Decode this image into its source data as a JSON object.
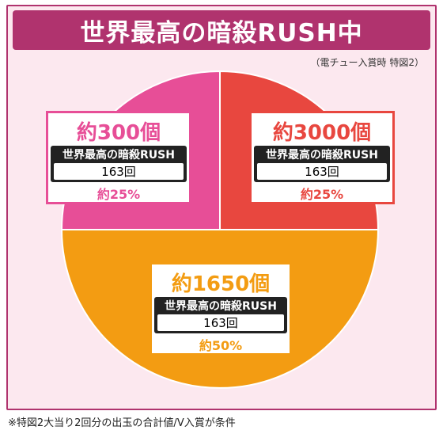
{
  "title": "世界最高の暗殺RUSH中",
  "note": "（電チュー入賞時 特図2）",
  "footnote": "※特図2大当り2回分の出玉の合計値/V入賞が条件",
  "colors": {
    "pink": "#e74e97",
    "red": "#e8473f",
    "orange": "#f39c12",
    "frame": "#b0336e"
  },
  "chart_data": {
    "type": "pie",
    "title": "世界最高の暗殺RUSH中",
    "slices": [
      {
        "key": "red",
        "amount": "約3000個",
        "mode": "世界最高の暗殺RUSH",
        "count": "163回",
        "percent_label": "約25%",
        "value": 25,
        "color": "#e8473f"
      },
      {
        "key": "orange",
        "amount": "約1650個",
        "mode": "世界最高の暗殺RUSH",
        "count": "163回",
        "percent_label": "約50%",
        "value": 50,
        "color": "#f39c12"
      },
      {
        "key": "pink",
        "amount": "約300個",
        "mode": "世界最高の暗殺RUSH",
        "count": "163回",
        "percent_label": "約25%",
        "value": 25,
        "color": "#e74e97"
      }
    ]
  }
}
